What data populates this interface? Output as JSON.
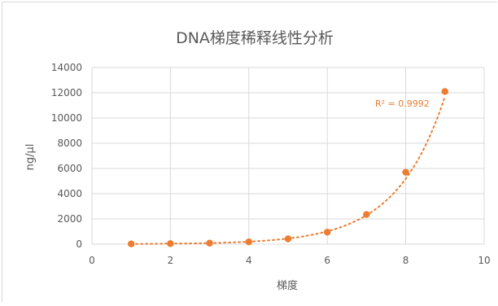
{
  "chart_data": {
    "type": "scatter",
    "title": "DNA梯度稀释线性分析",
    "xlabel": "梯度",
    "ylabel": "ng/µl",
    "xlim": [
      0,
      10
    ],
    "ylim": [
      0,
      14000
    ],
    "x_ticks": [
      0,
      2,
      4,
      6,
      8,
      10
    ],
    "y_ticks": [
      0,
      2000,
      4000,
      6000,
      8000,
      10000,
      12000,
      14000
    ],
    "grid": true,
    "series": [
      {
        "color": "#ed7d31",
        "x": [
          1,
          2,
          3,
          4,
          5,
          6,
          7,
          8,
          9
        ],
        "y": [
          20,
          40,
          80,
          180,
          420,
          950,
          2350,
          5700,
          12100
        ]
      }
    ],
    "trendline": {
      "type": "exponential",
      "style": "dotted",
      "color": "#ed7d31",
      "label": "R² = 0.9992"
    }
  }
}
